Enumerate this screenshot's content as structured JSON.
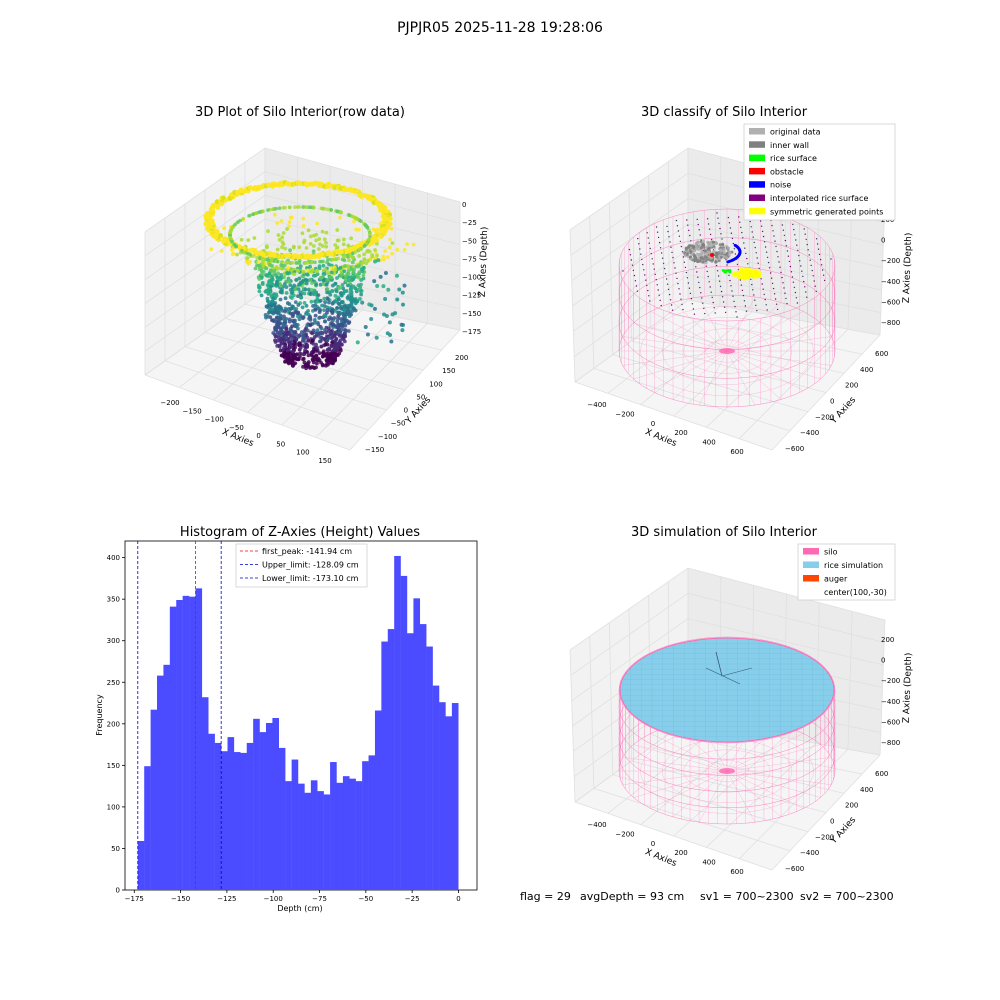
{
  "figure": {
    "suptitle": "PJPJR05 2025-11-28 19:28:06",
    "status_line": {
      "flag": "flag = 29",
      "avg_depth": "avgDepth = 93 cm",
      "sv1": "sv1 = 700~2300",
      "sv2": "sv2 = 700~2300"
    }
  },
  "colors": {
    "histogram_bar": "#4b4bff",
    "first_peak_line": "#ff0000",
    "limit_lines": "#0000cc",
    "silo": "#ff69b4",
    "rice_simulation": "#87ceeb",
    "auger": "#ff4500",
    "original_data": "#b0b0b0",
    "inner_wall": "#808080",
    "rice_surface": "#00ff00",
    "obstacle": "#ff0000",
    "noise": "#0000ff",
    "interpolated_rice_surface": "#800080",
    "symmetric_generated_points": "#ffff00"
  },
  "chart_data": [
    {
      "type": "scatter",
      "title": "3D Plot of Silo Interior(row data)",
      "xlabel": "X Axies",
      "ylabel": "Y Axies",
      "zlabel": "Z Axies (Depth)",
      "x_ticks": [
        "−200",
        "−150",
        "−100",
        "−50",
        "0",
        "50",
        "100",
        "150"
      ],
      "y_ticks": [
        "−150",
        "−100",
        "−50",
        "0",
        "50",
        "100",
        "150",
        "200"
      ],
      "z_ticks": [
        "0",
        "−25",
        "−50",
        "−75",
        "−100",
        "−125",
        "−150",
        "−175"
      ],
      "xlim": [
        -230,
        170
      ],
      "ylim": [
        -160,
        220
      ],
      "zlim": [
        -185,
        10
      ]
    },
    {
      "type": "scatter",
      "title": "3D classify of Silo Interior",
      "xlabel": "X Axies",
      "ylabel": "Y Axies",
      "zlabel": "Z Axies (Depth)",
      "x_ticks": [
        "−400",
        "−200",
        "0",
        "200",
        "400",
        "600"
      ],
      "y_ticks": [
        "−600",
        "−400",
        "−200",
        "0",
        "200",
        "400",
        "600"
      ],
      "z_ticks": [
        "200",
        "0",
        "−200",
        "−400",
        "−600",
        "−800"
      ],
      "legend": [
        {
          "label": "original data",
          "color": "#b0b0b0"
        },
        {
          "label": "inner wall",
          "color": "#808080"
        },
        {
          "label": "rice surface",
          "color": "#00ff00"
        },
        {
          "label": "obstacle",
          "color": "#ff0000"
        },
        {
          "label": "noise",
          "color": "#0000ff"
        },
        {
          "label": "interpolated rice surface",
          "color": "#800080"
        },
        {
          "label": "symmetric generated points",
          "color": "#ffff00"
        }
      ],
      "legend_loc": "upper right"
    },
    {
      "type": "bar",
      "title": "Histogram of Z-Axies (Height) Values",
      "xlabel": "Depth (cm)",
      "ylabel": "Frequency",
      "xlim": [
        -180,
        10
      ],
      "ylim": [
        0,
        420
      ],
      "x_ticks": [
        -175,
        -150,
        -125,
        -100,
        -75,
        -50,
        -25,
        0
      ],
      "y_ticks": [
        0,
        50,
        100,
        150,
        200,
        250,
        300,
        350,
        400
      ],
      "bin_start": -173.1,
      "bin_width": 3.46,
      "values": [
        59,
        149,
        217,
        258,
        271,
        341,
        349,
        354,
        353,
        363,
        232,
        188,
        177,
        167,
        184,
        166,
        165,
        177,
        206,
        190,
        201,
        207,
        171,
        131,
        157,
        128,
        117,
        132,
        119,
        115,
        154,
        129,
        137,
        134,
        131,
        155,
        162,
        216,
        299,
        314,
        402,
        378,
        309,
        351,
        320,
        293,
        246,
        226,
        209,
        225
      ],
      "vlines": [
        {
          "label": "first_peak: -141.94 cm",
          "x": -141.94,
          "color": "#ff0000"
        },
        {
          "label": "Upper_limit: -128.09 cm",
          "x": -128.09,
          "color": "#0000cc"
        },
        {
          "label": "Lower_limit: -173.10 cm",
          "x": -173.1,
          "color": "#0000cc"
        }
      ],
      "legend_loc": "upper center"
    },
    {
      "type": "scatter",
      "title": "3D simulation of Silo Interior",
      "xlabel": "X Axies",
      "ylabel": "Y Axies",
      "zlabel": "Z Axies (Depth)",
      "x_ticks": [
        "−400",
        "−200",
        "0",
        "200",
        "400",
        "600"
      ],
      "y_ticks": [
        "−600",
        "−400",
        "−200",
        "0",
        "200",
        "400",
        "600"
      ],
      "z_ticks": [
        "200",
        "0",
        "−200",
        "−400",
        "−600",
        "−800"
      ],
      "legend": [
        {
          "label": "silo",
          "color": "#ff69b4"
        },
        {
          "label": "rice simulation",
          "color": "#87ceeb"
        },
        {
          "label": "auger",
          "color": "#ff4500"
        },
        {
          "label": "center(100,-30)",
          "color": ""
        }
      ],
      "legend_loc": "upper right"
    }
  ]
}
